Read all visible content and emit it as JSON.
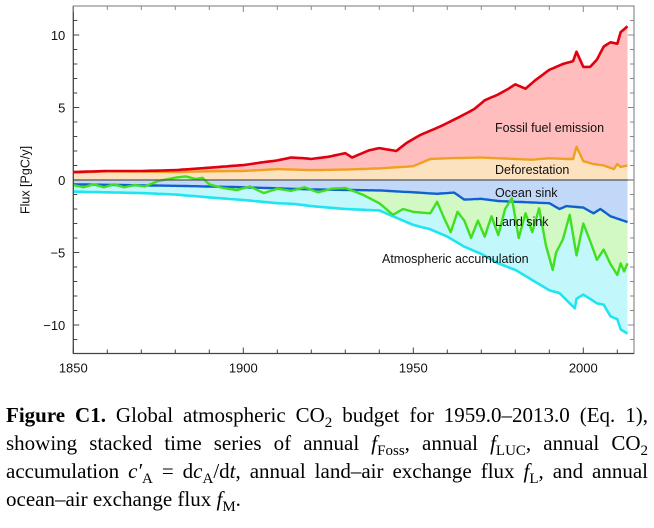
{
  "chart_data": {
    "type": "area",
    "title": "",
    "xlabel": "",
    "ylabel": "Flux [PgC/y]",
    "xlim": [
      1850,
      2017
    ],
    "ylim": [
      -12,
      12
    ],
    "x_ticks": [
      1850,
      1900,
      1950,
      2000
    ],
    "x_tick_labels": [
      "1850",
      "1900",
      "1950",
      "2000"
    ],
    "y_ticks": [
      10,
      5,
      0,
      -5,
      -10
    ],
    "y_tick_labels": [
      "10",
      "5",
      "0",
      "−5",
      "−10"
    ],
    "grid": false,
    "zero_line": true,
    "stacking": "Positive side: Deforestation stacked below Fossil fuel emission (upper curve = cumulative total). Negative side: Ocean sink, Land sink, Atmospheric accumulation stacked downward (curves show cumulative values).",
    "series": [
      {
        "name": "Fossil fuel emission",
        "label": "Fossil fuel emission",
        "line_color": "#e00010",
        "fill_color": "#ffbdbd",
        "cumulative_upper_curve": true,
        "x": [
          1850,
          1860,
          1870,
          1880,
          1890,
          1900,
          1905,
          1910,
          1914,
          1918,
          1920,
          1925,
          1930,
          1932,
          1937,
          1940,
          1945,
          1948,
          1952,
          1958,
          1964,
          1968,
          1971,
          1975,
          1978,
          1980,
          1983,
          1986,
          1990,
          1994,
          1997,
          1998,
          2000,
          2002,
          2004,
          2006,
          2008,
          2010,
          2011,
          2013
        ],
        "y": [
          0.55,
          0.62,
          0.62,
          0.68,
          0.85,
          1.03,
          1.2,
          1.35,
          1.55,
          1.5,
          1.45,
          1.6,
          1.85,
          1.55,
          2.05,
          2.2,
          2.0,
          2.55,
          3.1,
          3.7,
          4.4,
          4.9,
          5.5,
          5.9,
          6.3,
          6.6,
          6.3,
          6.9,
          7.6,
          8.0,
          8.2,
          8.85,
          7.8,
          7.8,
          8.3,
          9.2,
          9.5,
          9.4,
          10.2,
          10.6
        ]
      },
      {
        "name": "Deforestation",
        "label": "Deforestation",
        "line_color": "#f0a020",
        "fill_color": "#fde2c0",
        "x": [
          1850,
          1860,
          1870,
          1880,
          1890,
          1900,
          1910,
          1920,
          1930,
          1940,
          1950,
          1955,
          1960,
          1970,
          1980,
          1985,
          1990,
          1995,
          1997,
          1998,
          2000,
          2003,
          2006,
          2009,
          2010,
          2011,
          2013
        ],
        "y": [
          0.5,
          0.6,
          0.58,
          0.55,
          0.6,
          0.62,
          0.75,
          0.68,
          0.72,
          0.8,
          0.95,
          1.45,
          1.5,
          1.55,
          1.45,
          1.4,
          1.5,
          1.45,
          1.45,
          2.3,
          1.3,
          1.1,
          1.0,
          0.75,
          1.1,
          0.9,
          1.0
        ]
      },
      {
        "name": "Ocean sink",
        "label": "Ocean sink",
        "line_color": "#1060d0",
        "fill_color": "#c2d8f8",
        "x": [
          1850,
          1880,
          1900,
          1920,
          1940,
          1950,
          1957,
          1962,
          1965,
          1970,
          1975,
          1980,
          1985,
          1990,
          1993,
          1995,
          2000,
          2003,
          2005,
          2008,
          2013
        ],
        "y": [
          -0.3,
          -0.4,
          -0.5,
          -0.65,
          -0.72,
          -0.85,
          -0.95,
          -0.87,
          -1.35,
          -1.3,
          -1.45,
          -1.5,
          -1.55,
          -1.6,
          -2.0,
          -1.8,
          -1.9,
          -2.3,
          -2.0,
          -2.5,
          -2.9
        ]
      },
      {
        "name": "Land sink",
        "label": "Land sink",
        "line_color": "#40e020",
        "fill_color": "#d2f8c4",
        "x": [
          1850,
          1853,
          1856,
          1859,
          1862,
          1865,
          1868,
          1871,
          1875,
          1880,
          1883,
          1886,
          1888,
          1890,
          1894,
          1898,
          1902,
          1906,
          1910,
          1914,
          1918,
          1922,
          1926,
          1930,
          1935,
          1940,
          1944,
          1947,
          1950,
          1955,
          1957,
          1959,
          1961,
          1963,
          1965,
          1967,
          1969,
          1971,
          1973,
          1975,
          1977,
          1979,
          1981,
          1983,
          1985,
          1987,
          1989,
          1991,
          1992,
          1994,
          1996,
          1998,
          2000,
          2002,
          2004,
          2006,
          2008,
          2010,
          2011,
          2012,
          2013
        ],
        "y": [
          -0.35,
          -0.5,
          -0.3,
          -0.5,
          -0.3,
          -0.5,
          -0.35,
          -0.45,
          -0.07,
          0.16,
          0.25,
          0.07,
          0.15,
          -0.3,
          -0.55,
          -0.7,
          -0.45,
          -0.9,
          -0.6,
          -0.75,
          -0.5,
          -0.85,
          -0.6,
          -0.55,
          -1.0,
          -1.6,
          -2.4,
          -2.0,
          -2.2,
          -2.3,
          -1.5,
          -2.6,
          -3.6,
          -2.2,
          -2.8,
          -4.0,
          -2.8,
          -3.9,
          -2.5,
          -3.8,
          -2.0,
          -1.26,
          -4.0,
          -2.3,
          -3.6,
          -1.95,
          -4.5,
          -6.2,
          -5.0,
          -4.1,
          -2.4,
          -5.2,
          -3.0,
          -4.2,
          -5.5,
          -4.8,
          -5.8,
          -6.55,
          -5.75,
          -6.3,
          -5.75
        ]
      },
      {
        "name": "Atmospheric accumulation",
        "label": "Atmospheric accumulation",
        "line_color": "#20e4f0",
        "fill_color": "#c2f8fc",
        "x": [
          1850,
          1860,
          1870,
          1880,
          1890,
          1900,
          1910,
          1915,
          1920,
          1930,
          1940,
          1945,
          1950,
          1955,
          1960,
          1965,
          1970,
          1975,
          1980,
          1985,
          1990,
          1993,
          1997.5,
          1998,
          2000,
          2002,
          2004,
          2006,
          2008,
          2010,
          2011,
          2013
        ],
        "y": [
          -0.8,
          -0.85,
          -0.9,
          -1.0,
          -1.2,
          -1.38,
          -1.6,
          -1.65,
          -1.8,
          -2.0,
          -2.1,
          -2.6,
          -3.1,
          -3.4,
          -3.9,
          -4.6,
          -5.1,
          -5.75,
          -6.2,
          -6.9,
          -7.6,
          -7.8,
          -8.85,
          -8.2,
          -7.9,
          -8.2,
          -8.5,
          -8.6,
          -9.4,
          -9.6,
          -10.3,
          -10.6
        ]
      }
    ],
    "labels": [
      "Fossil fuel emission",
      "Deforestation",
      "Ocean sink",
      "Land sink",
      "Atmospheric accumulation"
    ]
  },
  "caption": {
    "figure_label": "Figure C1.",
    "text_1": " Global atmospheric CO",
    "sub_2": "2",
    "text_2": " budget for 1959.0–2013.0 (Eq. 1), showing stacked time series of annual ",
    "f": "f",
    "sub_foss": "Foss",
    "text_3": ", annual ",
    "sub_luc": "LUC",
    "text_4": ", annual CO",
    "text_5": " accumulation ",
    "c_prime": "c′",
    "sub_a": "A",
    "text_6": " = d",
    "c": "c",
    "text_7": "/d",
    "t": "t",
    "text_8": ", annual land–air exchange flux ",
    "sub_l": "L",
    "text_9": ", and annual ocean–air exchange flux ",
    "sub_m": "M",
    "text_10": "."
  }
}
